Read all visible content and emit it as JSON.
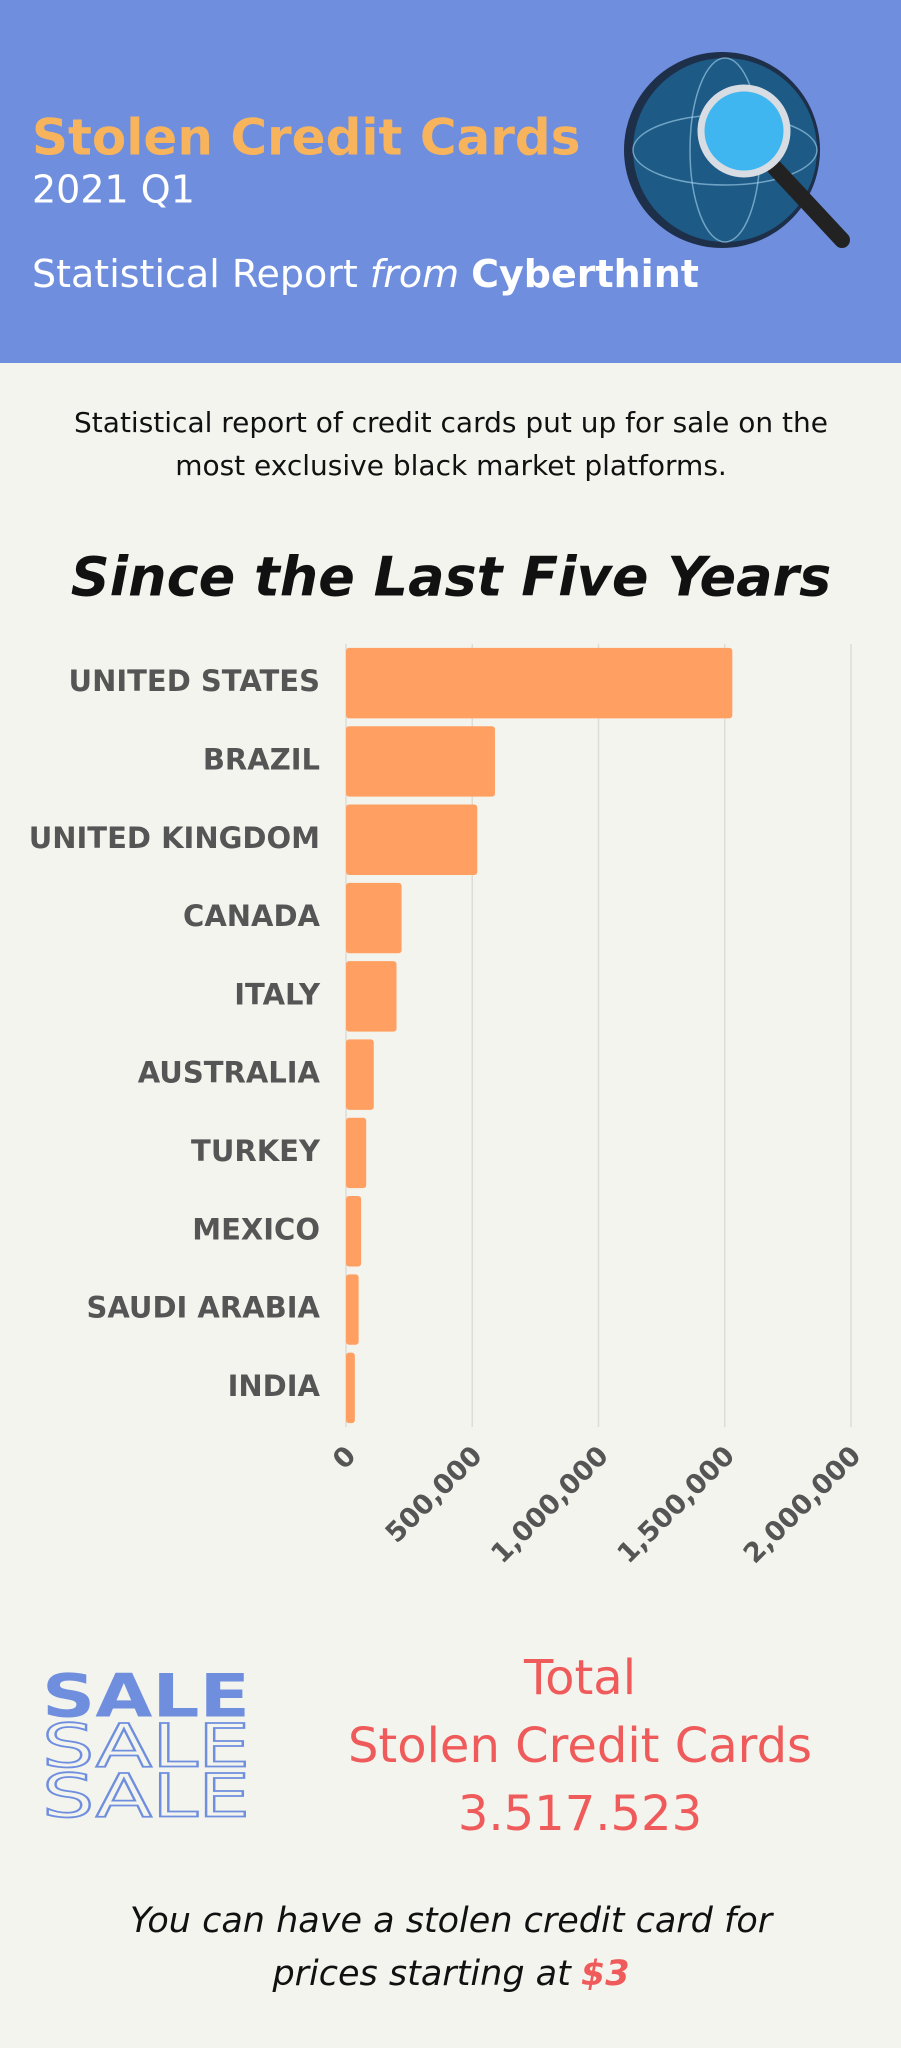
{
  "header": {
    "title": "Stolen Credit Cards",
    "period": "2021 Q1",
    "report": "Statistical Report",
    "from": "from",
    "brand": "Cyberthint"
  },
  "intro": [
    "Statistical report of credit cards put up for sale on the",
    "most exclusive black market platforms."
  ],
  "chart_data": {
    "type": "bar",
    "orientation": "horizontal",
    "title": "Since the Last Five Years",
    "categories": [
      "UNITED STATES",
      "BRAZIL",
      "UNITED KINGDOM",
      "CANADA",
      "ITALY",
      "AUSTRALIA",
      "TURKEY",
      "MEXICO",
      "SAUDI ARABIA",
      "INDIA"
    ],
    "values": [
      1530000,
      590000,
      520000,
      220000,
      200000,
      110000,
      80000,
      60000,
      50000,
      35000
    ],
    "color": "#ffa062",
    "xlim": [
      0,
      2000000
    ],
    "xticks": [
      0,
      {
        "value": 500000,
        "label": "500,000"
      },
      {
        "value": 1000000,
        "label": "1,000,000"
      },
      {
        "value": 1500000,
        "label": "1,500,000"
      },
      {
        "value": 2000000,
        "label": "2,000,000"
      }
    ],
    "grid": true
  },
  "sale": [
    "SALE",
    "SALE",
    "SALE"
  ],
  "total": {
    "label": [
      "Total",
      "Stolen Credit Cards"
    ],
    "value": "3.517.523"
  },
  "footer": {
    "lines": [
      "You can have a stolen credit card for",
      "prices starting at"
    ],
    "price": "$3"
  }
}
